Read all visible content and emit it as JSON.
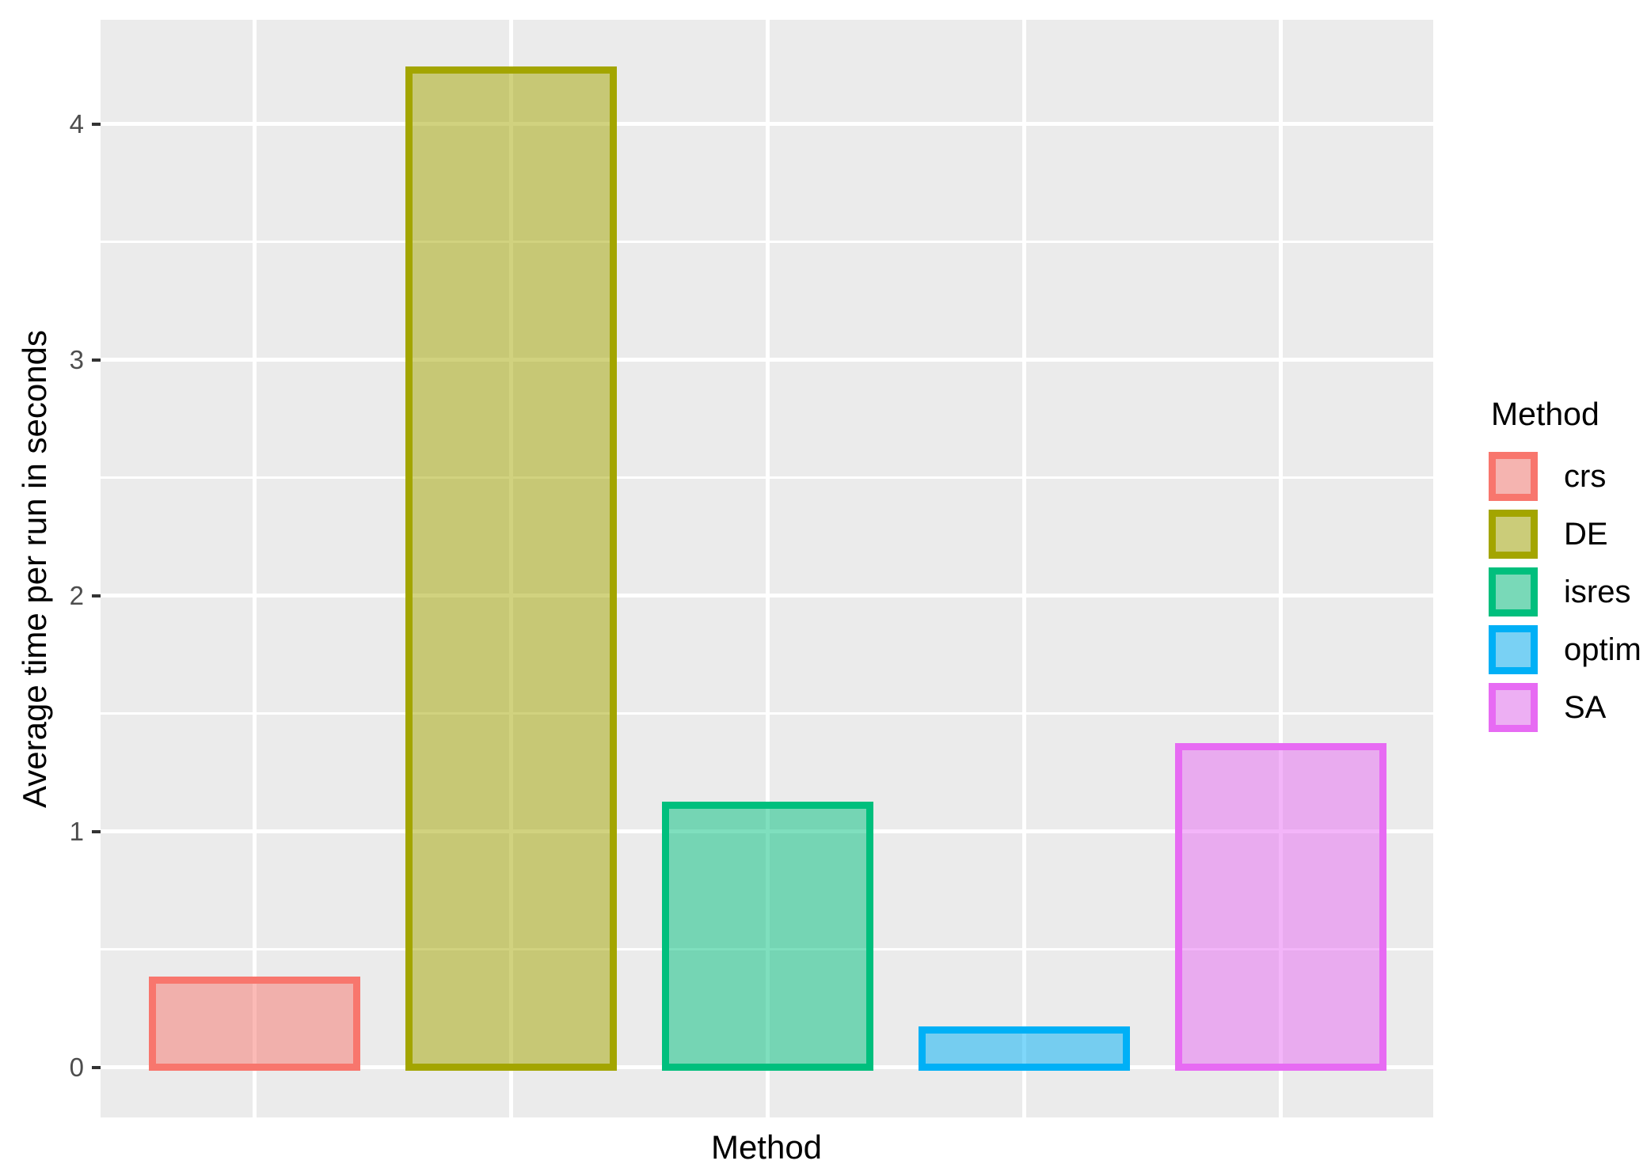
{
  "chart_data": {
    "type": "bar",
    "title": "",
    "xlabel": "Method",
    "ylabel": "Average time per run in seconds",
    "categories": [
      "crs",
      "DE",
      "isres",
      "optim",
      "SA"
    ],
    "values": [
      0.37,
      4.23,
      1.11,
      0.16,
      1.36
    ],
    "series_colors": [
      "#F8766D",
      "#A3A500",
      "#00BF7D",
      "#00B0F6",
      "#E76BF3"
    ],
    "fill_alpha": 0.5,
    "y_ticks": [
      "0",
      "1",
      "2",
      "3",
      "4"
    ],
    "y_tick_values": [
      0,
      1,
      2,
      3,
      4
    ],
    "y_minor_values": [
      0.5,
      1.5,
      2.5,
      3.5
    ],
    "ylim": [
      -0.21,
      4.44
    ],
    "grid": "white major and minor horizontal lines, white major vertical lines at category centers, grid on",
    "legend": {
      "position": "right",
      "title": "Method",
      "labels": [
        "crs",
        "DE",
        "isres",
        "optim",
        "SA"
      ]
    },
    "colors": {
      "panel_background": "#EBEBEB",
      "gridline": "#FFFFFF",
      "tick_mark": "#333333",
      "tick_label": "#4D4D4D",
      "axis_title": "#000000",
      "legend_key_background": "#F2F2F2"
    }
  }
}
